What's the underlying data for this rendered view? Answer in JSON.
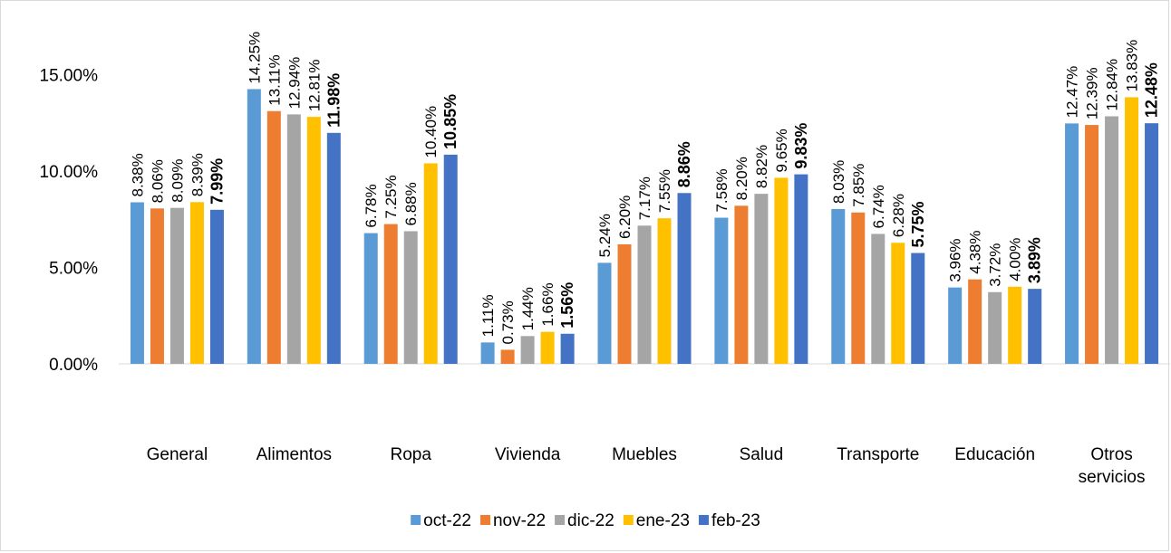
{
  "chart_data": {
    "type": "bar",
    "title": "",
    "xlabel": "",
    "ylabel": "",
    "ylim": [
      0,
      0.17
    ],
    "y_ticks": [
      "0.00%",
      "5.00%",
      "10.00%",
      "15.00%"
    ],
    "y_tick_values": [
      0,
      0.05,
      0.1,
      0.15
    ],
    "grid": false,
    "legend_position": "bottom",
    "categories": [
      [
        "General"
      ],
      [
        "Alimentos"
      ],
      [
        "Ropa"
      ],
      [
        "Vivienda"
      ],
      [
        "Muebles"
      ],
      [
        "Salud"
      ],
      [
        "Transporte"
      ],
      [
        "Educación"
      ],
      [
        "Otros",
        "servicios"
      ]
    ],
    "series": [
      {
        "name": "oct-22",
        "color": "#5b9bd5",
        "bold_labels": false,
        "values": [
          0.0838,
          0.1425,
          0.0678,
          0.0111,
          0.0524,
          0.0758,
          0.0803,
          0.0396,
          0.1247
        ],
        "labels": [
          "8.38%",
          "14.25%",
          "6.78%",
          "1.11%",
          "5.24%",
          "7.58%",
          "8.03%",
          "3.96%",
          "12.47%"
        ]
      },
      {
        "name": "nov-22",
        "color": "#ed7d31",
        "bold_labels": false,
        "values": [
          0.0806,
          0.1311,
          0.0725,
          0.0073,
          0.062,
          0.082,
          0.0785,
          0.0438,
          0.1239
        ],
        "labels": [
          "8.06%",
          "13.11%",
          "7.25%",
          "0.73%",
          "6.20%",
          "8.20%",
          "7.85%",
          "4.38%",
          "12.39%"
        ]
      },
      {
        "name": "dic-22",
        "color": "#a5a5a5",
        "bold_labels": false,
        "values": [
          0.0809,
          0.1294,
          0.0688,
          0.0144,
          0.0717,
          0.0882,
          0.0674,
          0.0372,
          0.1284
        ],
        "labels": [
          "8.09%",
          "12.94%",
          "6.88%",
          "1.44%",
          "7.17%",
          "8.82%",
          "6.74%",
          "3.72%",
          "12.84%"
        ]
      },
      {
        "name": "ene-23",
        "color": "#ffc000",
        "bold_labels": false,
        "values": [
          0.0839,
          0.1281,
          0.104,
          0.0166,
          0.0755,
          0.0965,
          0.0628,
          0.04,
          0.1383
        ],
        "labels": [
          "8.39%",
          "12.81%",
          "10.40%",
          "1.66%",
          "7.55%",
          "9.65%",
          "6.28%",
          "4.00%",
          "13.83%"
        ]
      },
      {
        "name": "feb-23",
        "color": "#4472c4",
        "bold_labels": true,
        "values": [
          0.0799,
          0.1198,
          0.1085,
          0.0156,
          0.0886,
          0.0983,
          0.0575,
          0.0389,
          0.1248
        ],
        "labels": [
          "7.99%",
          "11.98%",
          "10.85%",
          "1.56%",
          "8.86%",
          "9.83%",
          "5.75%",
          "3.89%",
          "12.48%"
        ]
      }
    ]
  }
}
